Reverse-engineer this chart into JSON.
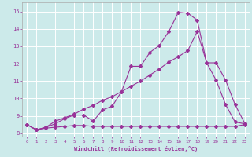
{
  "xlabel": "Windchill (Refroidissement éolien,°C)",
  "background_color": "#cceaea",
  "grid_color": "#ffffff",
  "line_color": "#993399",
  "xlim": [
    -0.5,
    23.5
  ],
  "ylim": [
    7.8,
    15.5
  ],
  "xticks": [
    0,
    1,
    2,
    3,
    4,
    5,
    6,
    7,
    8,
    9,
    10,
    11,
    12,
    13,
    14,
    15,
    16,
    17,
    18,
    19,
    20,
    21,
    22,
    23
  ],
  "yticks": [
    8,
    9,
    10,
    11,
    12,
    13,
    14,
    15
  ],
  "series1_x": [
    0,
    1,
    2,
    3,
    4,
    5,
    6,
    7,
    8,
    9,
    10,
    11,
    12,
    13,
    14,
    15,
    16,
    17,
    18,
    19,
    20,
    21,
    22,
    23
  ],
  "series1_y": [
    8.5,
    8.2,
    8.3,
    8.35,
    8.4,
    8.45,
    8.45,
    8.4,
    8.4,
    8.4,
    8.4,
    8.4,
    8.4,
    8.4,
    8.4,
    8.4,
    8.4,
    8.4,
    8.4,
    8.4,
    8.4,
    8.4,
    8.4,
    8.5
  ],
  "series2_x": [
    0,
    1,
    2,
    3,
    4,
    5,
    6,
    7,
    8,
    9,
    10,
    11,
    12,
    13,
    14,
    15,
    16,
    17,
    18,
    19,
    20,
    21,
    22,
    23
  ],
  "series2_y": [
    8.5,
    8.2,
    8.35,
    8.55,
    8.85,
    9.05,
    9.05,
    8.7,
    9.35,
    9.55,
    10.4,
    11.85,
    11.85,
    12.65,
    13.05,
    13.85,
    14.95,
    14.9,
    14.5,
    12.05,
    12.05,
    11.05,
    9.65,
    8.6
  ],
  "series3_x": [
    0,
    1,
    2,
    3,
    4,
    5,
    6,
    7,
    8,
    9,
    10,
    11,
    12,
    13,
    14,
    15,
    16,
    17,
    18,
    19,
    20,
    21,
    22,
    23
  ],
  "series3_y": [
    8.5,
    8.2,
    8.35,
    8.7,
    8.9,
    9.1,
    9.4,
    9.6,
    9.9,
    10.1,
    10.4,
    10.7,
    11.0,
    11.35,
    11.7,
    12.1,
    12.4,
    12.75,
    13.85,
    12.05,
    11.05,
    9.65,
    8.65,
    8.55
  ]
}
